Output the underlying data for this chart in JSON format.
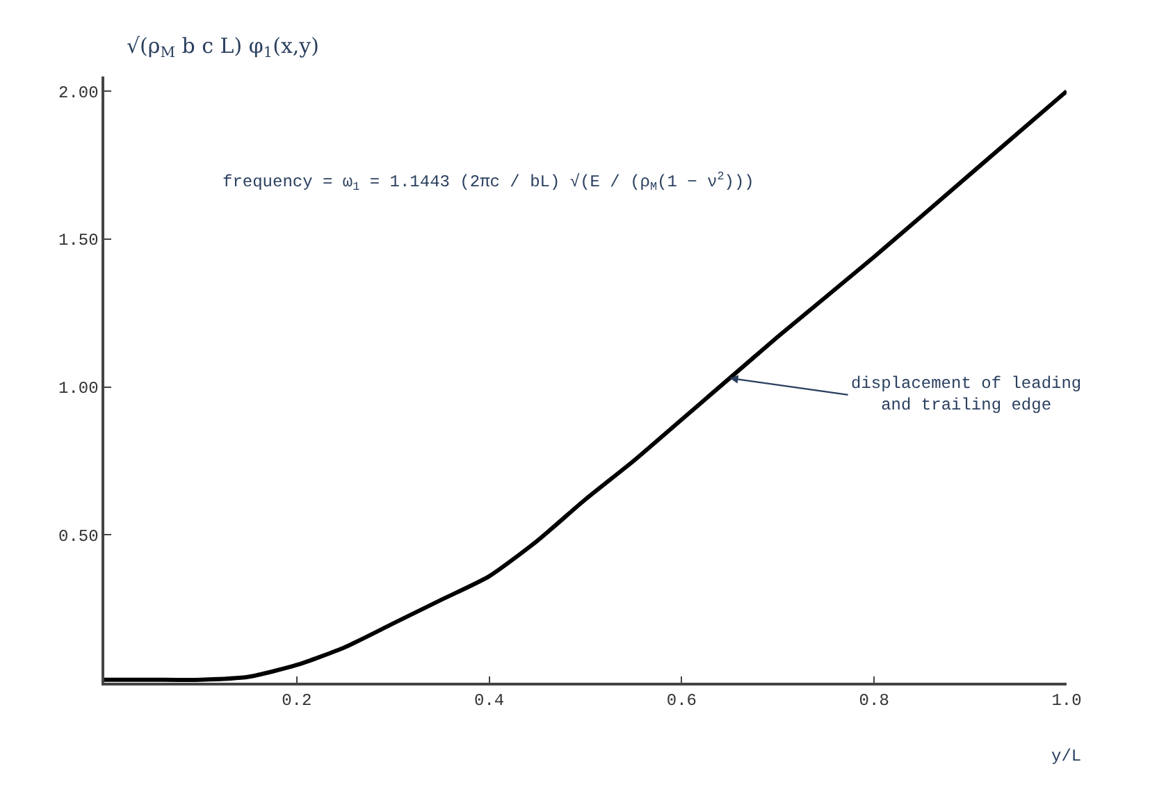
{
  "chart_data": {
    "type": "line",
    "xlabel": "y/L",
    "ylabel": "√(ρ$_{M}$ b c L) φ$_{1}$(x,y)",
    "x": [
      0,
      0.05,
      0.1,
      0.15,
      0.2,
      0.25,
      0.3,
      0.35,
      0.4,
      0.45,
      0.5,
      0.55,
      0.6,
      0.65,
      0.7,
      0.8,
      0.9,
      1.0
    ],
    "series": [
      {
        "color": "#000000",
        "values": [
          0.01,
          0.01,
          0.01,
          0.02,
          0.06,
          0.12,
          0.2,
          0.28,
          0.36,
          0.48,
          0.62,
          0.75,
          0.89,
          1.03,
          1.17,
          1.44,
          1.72,
          2.0
        ]
      }
    ],
    "xlim": [
      0,
      1.0
    ],
    "ylim": [
      0,
      2.05
    ],
    "xticks": [
      0.2,
      0.4,
      0.6,
      0.8,
      {
        "value": 1.0,
        "label": "1.0"
      }
    ],
    "yticks": [
      {
        "value": 0.5,
        "label": "0.50"
      },
      {
        "value": 1.0,
        "label": "1.00"
      },
      {
        "value": 1.5,
        "label": "1.50"
      },
      {
        "value": 2.0,
        "label": "2.00"
      }
    ],
    "marker": "none",
    "line_style": "solid",
    "annotations": [
      "frequency = ω$_{1}$ = 1.1443 (2πc / bL) √(E / (ρ$_{M}$(1 − ν$^{2}$)))",
      {
        "text": "displacement of leading\nand trailing edge",
        "x": 0.65,
        "y": 1.03
      }
    ]
  }
}
